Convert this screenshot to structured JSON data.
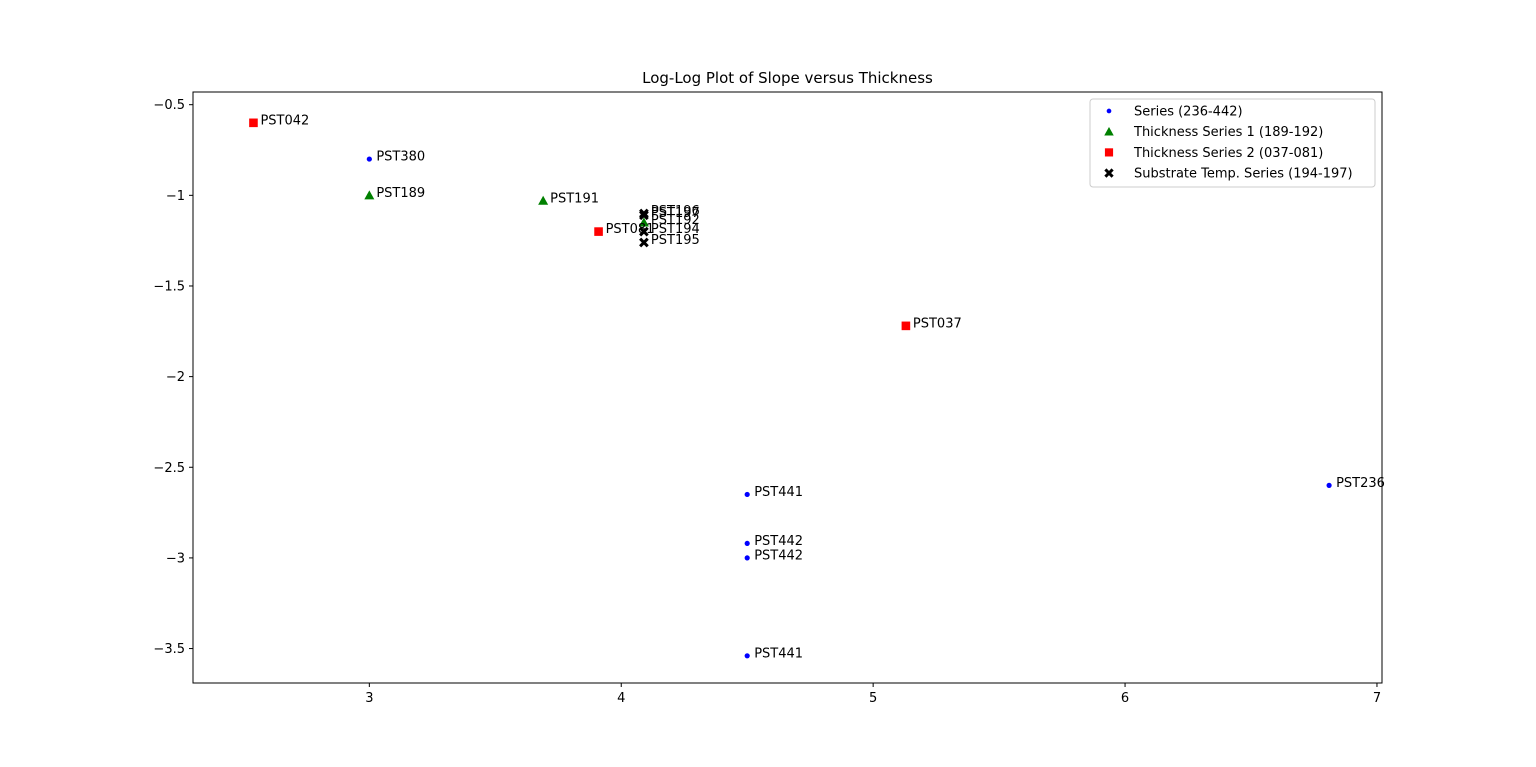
{
  "chart_data": {
    "type": "scatter",
    "title": "Log-Log Plot of Slope versus Thickness",
    "xlabel": "",
    "ylabel": "",
    "xlim": [
      2.3,
      7.02
    ],
    "ylim": [
      -3.69,
      -0.43
    ],
    "xticks": [
      3,
      4,
      5,
      6,
      7
    ],
    "yticks": [
      -0.5,
      -1.0,
      -1.5,
      -2.0,
      -2.5,
      -3.0,
      -3.5
    ],
    "grid": false,
    "legend_position": "top-right",
    "series": [
      {
        "name": "Series (236-442)",
        "marker": "circle",
        "color": "#0000ff",
        "points": [
          {
            "x": 3.0,
            "y": -0.8,
            "label": "PST380"
          },
          {
            "x": 6.81,
            "y": -2.6,
            "label": "PST236"
          },
          {
            "x": 4.5,
            "y": -2.65,
            "label": "PST441"
          },
          {
            "x": 4.5,
            "y": -2.92,
            "label": "PST442"
          },
          {
            "x": 4.5,
            "y": -3.0,
            "label": "PST442"
          },
          {
            "x": 4.5,
            "y": -3.54,
            "label": "PST441"
          }
        ]
      },
      {
        "name": "Thickness Series 1 (189-192)",
        "marker": "triangle",
        "color": "#008000",
        "points": [
          {
            "x": 3.0,
            "y": -1.0,
            "label": "PST189"
          },
          {
            "x": 3.69,
            "y": -1.03,
            "label": "PST191"
          },
          {
            "x": 4.09,
            "y": -1.15,
            "label": "PST192"
          }
        ]
      },
      {
        "name": "Thickness Series 2 (037-081)",
        "marker": "square",
        "color": "#ff0000",
        "points": [
          {
            "x": 2.54,
            "y": -0.6,
            "label": "PST042"
          },
          {
            "x": 3.91,
            "y": -1.2,
            "label": "PST081"
          },
          {
            "x": 5.13,
            "y": -1.72,
            "label": "PST037"
          }
        ]
      },
      {
        "name": "Substrate Temp. Series (194-197)",
        "marker": "x",
        "color": "#000000",
        "points": [
          {
            "x": 4.09,
            "y": -1.1,
            "label": "PST196"
          },
          {
            "x": 4.09,
            "y": -1.11,
            "label": "PST197"
          },
          {
            "x": 4.09,
            "y": -1.2,
            "label": "PST194"
          },
          {
            "x": 4.09,
            "y": -1.26,
            "label": "PST195"
          }
        ]
      }
    ]
  }
}
